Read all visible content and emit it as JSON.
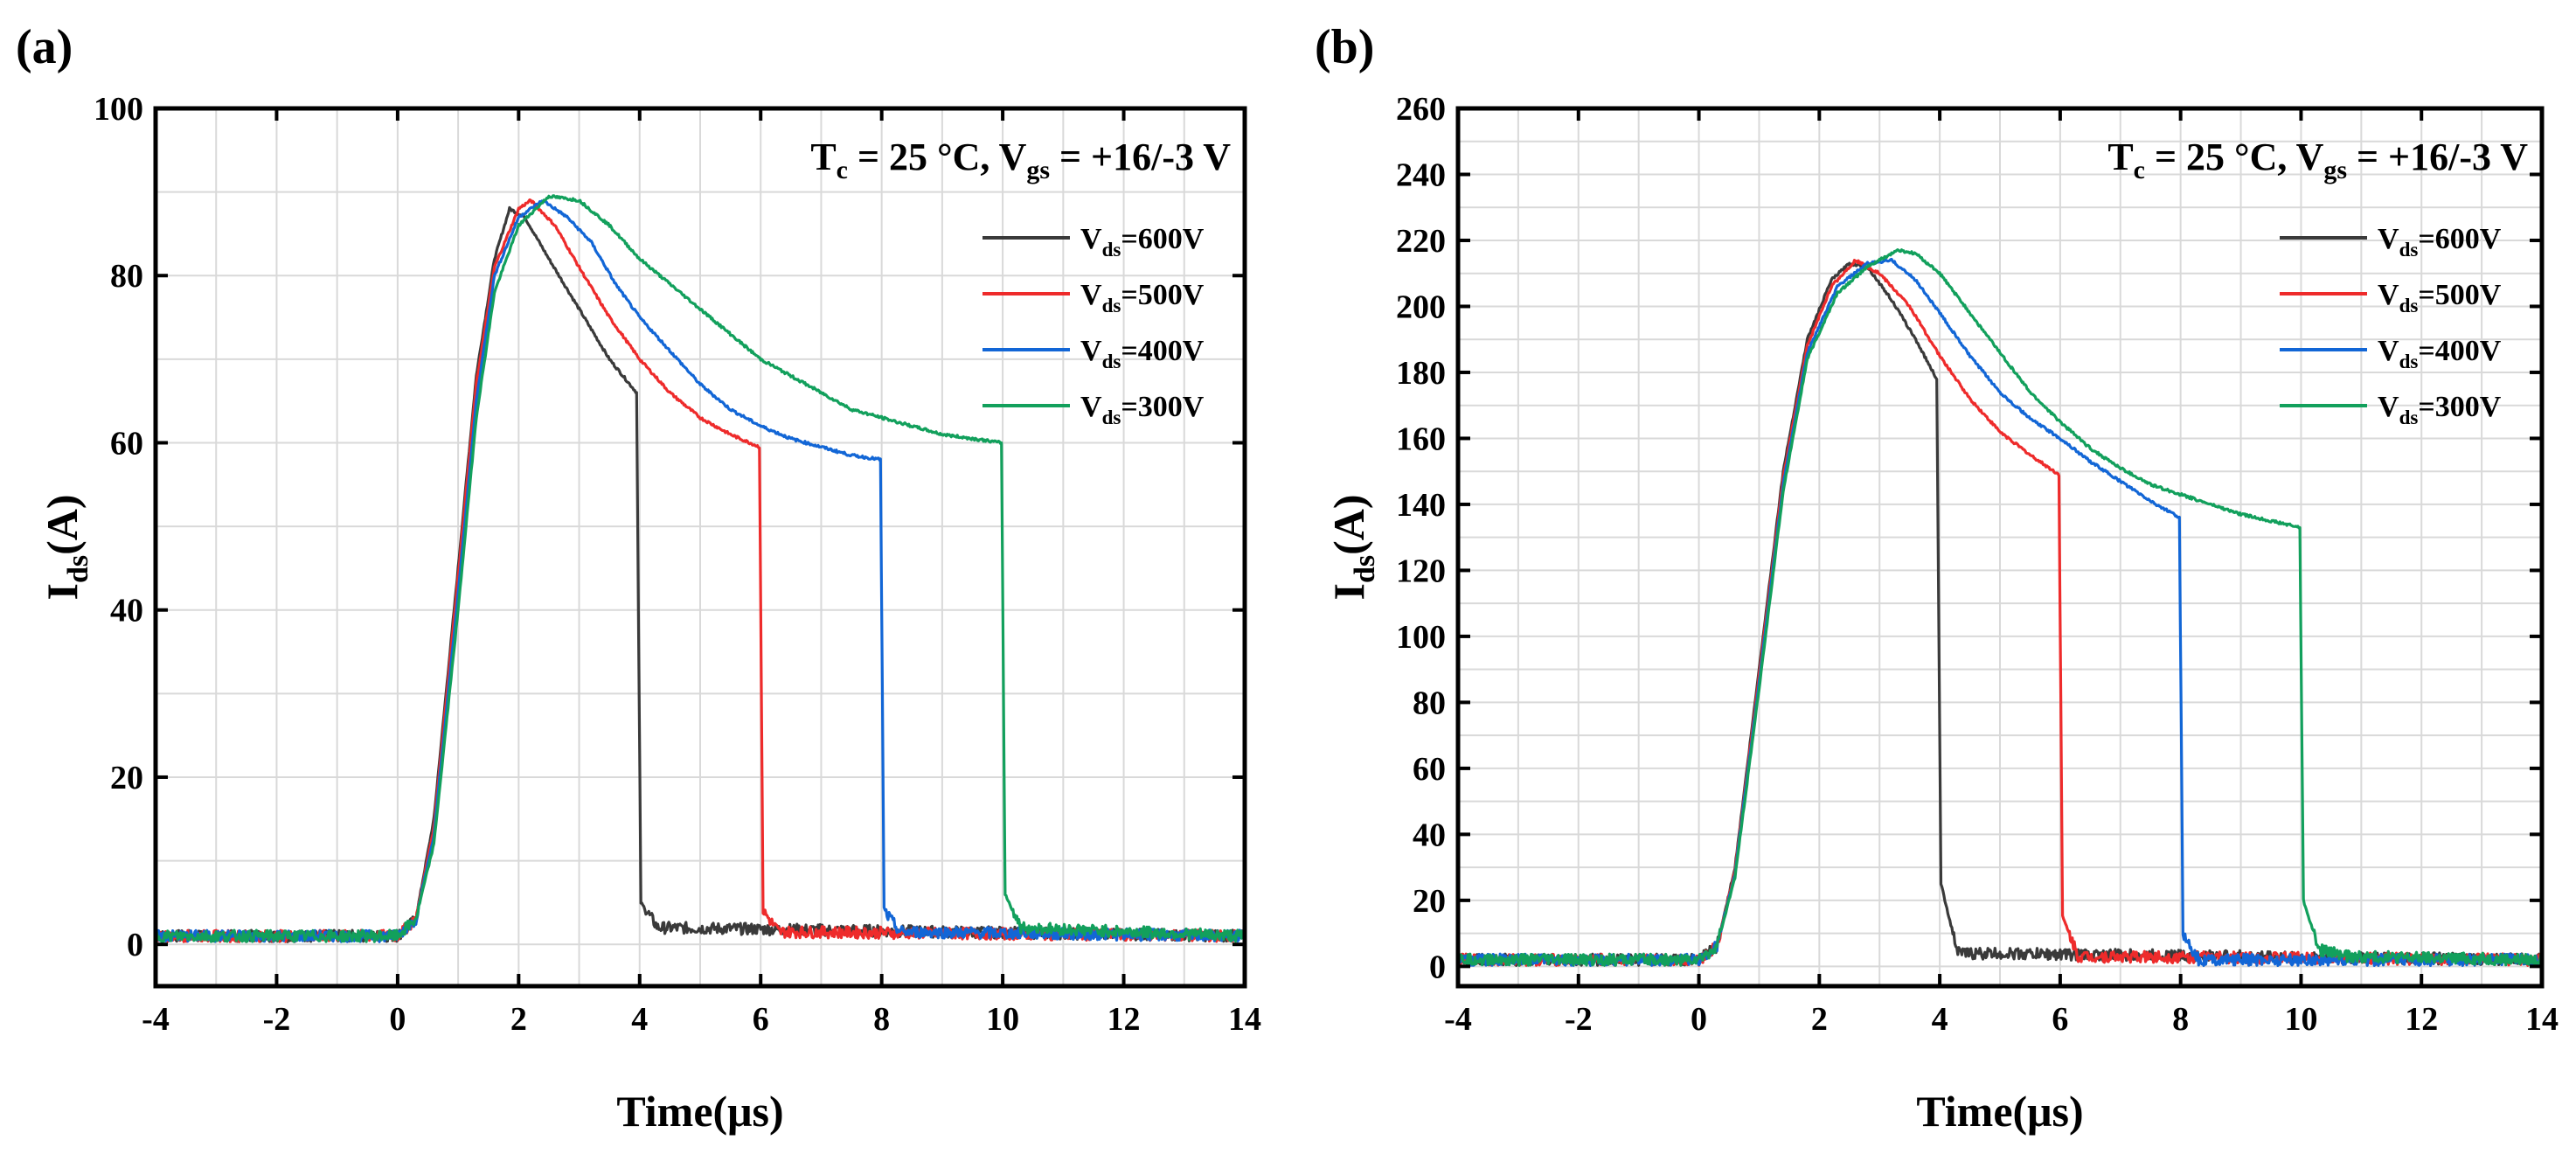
{
  "colors": {
    "s600": "#3a3a3a",
    "s500": "#ee2b2b",
    "s400": "#1266d6",
    "s300": "#12a05c",
    "grid": "#d9d9d9"
  },
  "chart_data": [
    {
      "panel_label": "(a)",
      "type": "line",
      "title": "",
      "condition": {
        "t": "T",
        "t_sub": "c",
        "mid": " = 25 °C, V",
        "v_sub": "gs",
        "end": " = +16/-3 V"
      },
      "xlabel": "Time(μs)",
      "ylabel": {
        "main": "I",
        "sub": "ds",
        "end": "(A)"
      },
      "xlim": [
        -4,
        14
      ],
      "ylim": [
        -5,
        100
      ],
      "xticks": [
        -4,
        -2,
        0,
        2,
        4,
        6,
        8,
        10,
        12,
        14
      ],
      "yticks": [
        0,
        20,
        40,
        60,
        80,
        100
      ],
      "grid": true,
      "legend_position": "upper-right",
      "series": [
        {
          "name": "V_ds=600V",
          "label_main": "V",
          "label_sub": "ds",
          "label_end": "=600V",
          "color_key": "s600",
          "baseline": 1,
          "points": [
            [
              -4,
              1
            ],
            [
              0,
              1
            ],
            [
              0.3,
              3
            ],
            [
              0.6,
              15
            ],
            [
              1.0,
              45
            ],
            [
              1.3,
              68
            ],
            [
              1.6,
              82
            ],
            [
              1.85,
              88
            ],
            [
              2.1,
              87
            ],
            [
              2.5,
              82
            ],
            [
              3.0,
              76
            ],
            [
              3.5,
              70
            ],
            [
              3.95,
              66
            ],
            [
              4.02,
              5
            ],
            [
              4.3,
              2
            ],
            [
              14,
              1
            ]
          ]
        },
        {
          "name": "V_ds=500V",
          "label_main": "V",
          "label_sub": "ds",
          "label_end": "=500V",
          "color_key": "s500",
          "baseline": 1,
          "points": [
            [
              -4,
              1
            ],
            [
              0,
              1
            ],
            [
              0.3,
              3
            ],
            [
              0.6,
              14
            ],
            [
              1.0,
              44
            ],
            [
              1.3,
              67
            ],
            [
              1.6,
              81
            ],
            [
              2.0,
              88
            ],
            [
              2.2,
              89
            ],
            [
              2.6,
              86
            ],
            [
              3.0,
              81
            ],
            [
              3.5,
              75
            ],
            [
              4.0,
              70
            ],
            [
              4.5,
              66
            ],
            [
              5.0,
              63
            ],
            [
              5.5,
              61
            ],
            [
              5.98,
              59.5
            ],
            [
              6.04,
              4
            ],
            [
              6.3,
              1.5
            ],
            [
              14,
              1
            ]
          ]
        },
        {
          "name": "V_ds=400V",
          "label_main": "V",
          "label_sub": "ds",
          "label_end": "=400V",
          "color_key": "s400",
          "baseline": 1,
          "points": [
            [
              -4,
              1
            ],
            [
              0,
              1
            ],
            [
              0.3,
              3
            ],
            [
              0.6,
              13
            ],
            [
              1.0,
              42
            ],
            [
              1.3,
              65
            ],
            [
              1.6,
              80
            ],
            [
              2.0,
              87
            ],
            [
              2.4,
              89
            ],
            [
              2.8,
              87
            ],
            [
              3.2,
              84
            ],
            [
              3.6,
              79
            ],
            [
              4.0,
              75
            ],
            [
              4.5,
              71
            ],
            [
              5.0,
              67
            ],
            [
              5.5,
              64
            ],
            [
              6.0,
              62
            ],
            [
              6.5,
              60.5
            ],
            [
              7.0,
              59.5
            ],
            [
              7.5,
              58.5
            ],
            [
              7.98,
              58
            ],
            [
              8.04,
              4
            ],
            [
              8.3,
              1.5
            ],
            [
              14,
              1
            ]
          ]
        },
        {
          "name": "V_ds=300V",
          "label_main": "V",
          "label_sub": "ds",
          "label_end": "=300V",
          "color_key": "s300",
          "baseline": 1,
          "points": [
            [
              -4,
              1
            ],
            [
              0,
              1
            ],
            [
              0.3,
              3
            ],
            [
              0.6,
              12
            ],
            [
              1.0,
              40
            ],
            [
              1.3,
              63
            ],
            [
              1.6,
              78
            ],
            [
              2.0,
              86
            ],
            [
              2.5,
              89.5
            ],
            [
              3.0,
              89
            ],
            [
              3.5,
              86
            ],
            [
              4.0,
              82
            ],
            [
              4.5,
              79
            ],
            [
              5.0,
              76
            ],
            [
              5.5,
              73
            ],
            [
              6.0,
              70
            ],
            [
              6.5,
              68
            ],
            [
              7.0,
              66
            ],
            [
              7.5,
              64
            ],
            [
              8.0,
              63
            ],
            [
              8.5,
              62
            ],
            [
              9.0,
              61
            ],
            [
              9.5,
              60.5
            ],
            [
              9.98,
              60
            ],
            [
              10.04,
              6
            ],
            [
              10.3,
              2
            ],
            [
              14,
              1
            ]
          ]
        }
      ]
    },
    {
      "panel_label": "(b)",
      "type": "line",
      "title": "",
      "condition": {
        "t": "T",
        "t_sub": "c",
        "mid": " = 25 °C, V",
        "v_sub": "gs",
        "end": " = +16/-3 V"
      },
      "xlabel": "Time(μs)",
      "ylabel": {
        "main": "I",
        "sub": "ds",
        "end": "(A)"
      },
      "xlim": [
        -4,
        14
      ],
      "ylim": [
        -6,
        260
      ],
      "xticks": [
        -4,
        -2,
        0,
        2,
        4,
        6,
        8,
        10,
        12,
        14
      ],
      "yticks": [
        0,
        20,
        40,
        60,
        80,
        100,
        120,
        140,
        160,
        180,
        200,
        220,
        240,
        260
      ],
      "grid": true,
      "legend_position": "upper-right",
      "series": [
        {
          "name": "V_ds=600V",
          "label_main": "V",
          "label_sub": "ds",
          "label_end": "=600V",
          "color_key": "s600",
          "baseline": 2,
          "points": [
            [
              -4,
              2
            ],
            [
              0,
              2
            ],
            [
              0.3,
              6
            ],
            [
              0.6,
              30
            ],
            [
              1.0,
              90
            ],
            [
              1.4,
              150
            ],
            [
              1.8,
              190
            ],
            [
              2.2,
              208
            ],
            [
              2.5,
              213
            ],
            [
              2.8,
              212
            ],
            [
              3.2,
              202
            ],
            [
              3.6,
              190
            ],
            [
              3.95,
              178
            ],
            [
              4.02,
              25
            ],
            [
              4.3,
              4
            ],
            [
              14,
              2
            ]
          ]
        },
        {
          "name": "V_ds=500V",
          "label_main": "V",
          "label_sub": "ds",
          "label_end": "=500V",
          "color_key": "s500",
          "baseline": 2,
          "points": [
            [
              -4,
              2
            ],
            [
              0,
              2
            ],
            [
              0.3,
              6
            ],
            [
              0.6,
              29
            ],
            [
              1.0,
              88
            ],
            [
              1.4,
              148
            ],
            [
              1.8,
              188
            ],
            [
              2.2,
              206
            ],
            [
              2.6,
              214
            ],
            [
              3.0,
              210
            ],
            [
              3.5,
              200
            ],
            [
              4.0,
              185
            ],
            [
              4.5,
              172
            ],
            [
              5.0,
              162
            ],
            [
              5.5,
              155
            ],
            [
              5.98,
              149
            ],
            [
              6.04,
              15
            ],
            [
              6.3,
              3
            ],
            [
              14,
              2
            ]
          ]
        },
        {
          "name": "V_ds=400V",
          "label_main": "V",
          "label_sub": "ds",
          "label_end": "=400V",
          "color_key": "s400",
          "baseline": 2,
          "points": [
            [
              -4,
              2
            ],
            [
              0,
              2
            ],
            [
              0.3,
              6
            ],
            [
              0.6,
              28
            ],
            [
              1.0,
              86
            ],
            [
              1.4,
              146
            ],
            [
              1.8,
              186
            ],
            [
              2.3,
              206
            ],
            [
              2.8,
              213
            ],
            [
              3.2,
              214
            ],
            [
              3.6,
              208
            ],
            [
              4.0,
              198
            ],
            [
              4.5,
              185
            ],
            [
              5.0,
              174
            ],
            [
              5.5,
              166
            ],
            [
              6.0,
              160
            ],
            [
              6.5,
              153
            ],
            [
              7.0,
              147
            ],
            [
              7.5,
              141
            ],
            [
              7.98,
              136
            ],
            [
              8.04,
              10
            ],
            [
              8.3,
              2
            ],
            [
              14,
              2
            ]
          ]
        },
        {
          "name": "V_ds=300V",
          "label_main": "V",
          "label_sub": "ds",
          "label_end": "=300V",
          "color_key": "s300",
          "baseline": 2,
          "points": [
            [
              -4,
              2
            ],
            [
              0,
              2
            ],
            [
              0.3,
              6
            ],
            [
              0.6,
              27
            ],
            [
              1.0,
              84
            ],
            [
              1.4,
              144
            ],
            [
              1.8,
              184
            ],
            [
              2.3,
              204
            ],
            [
              2.8,
              212
            ],
            [
              3.3,
              217
            ],
            [
              3.6,
              216
            ],
            [
              4.0,
              210
            ],
            [
              4.5,
              198
            ],
            [
              5.0,
              186
            ],
            [
              5.5,
              174
            ],
            [
              6.0,
              165
            ],
            [
              6.5,
              157
            ],
            [
              7.0,
              151
            ],
            [
              7.5,
              146
            ],
            [
              8.0,
              143
            ],
            [
              8.5,
              140
            ],
            [
              9.0,
              137
            ],
            [
              9.5,
              135
            ],
            [
              9.98,
              133
            ],
            [
              10.04,
              20
            ],
            [
              10.3,
              5
            ],
            [
              10.8,
              3
            ],
            [
              14,
              2
            ]
          ]
        }
      ]
    }
  ]
}
